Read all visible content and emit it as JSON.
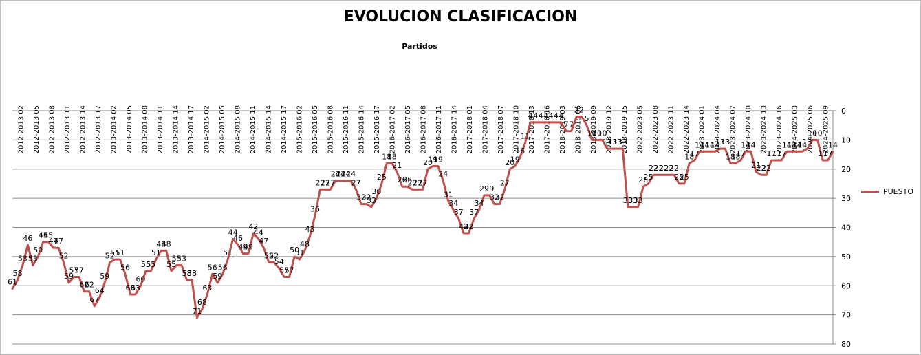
{
  "chart_data": {
    "type": "line",
    "title": "EVOLUCION CLASIFICACION",
    "xlabel": "Partidos",
    "ylabel": "",
    "ylim": [
      0,
      80
    ],
    "y_inverted": true,
    "y_ticks": [
      0,
      10,
      20,
      30,
      40,
      50,
      60,
      70,
      80
    ],
    "y_axis_side": "right",
    "grid": true,
    "legend_position": "right",
    "x_tick_labels": [
      "2012-2013 02",
      "2012-2013 05",
      "2012-2013 08",
      "2012-2013 11",
      "2012-2013 14",
      "2012-2013 17",
      "2013-2014 02",
      "2013-2014 05",
      "2013-2014 08",
      "2013-2014 11",
      "2013-2014 14",
      "2013-2014 17",
      "2014-2015 02",
      "2014-2015 05",
      "2014-2015 08",
      "2014-2015 11",
      "2014-2015 14",
      "2014-2015 17",
      "2015-2016 02",
      "2015-2016 05",
      "2015-2016 08",
      "2015-2016 11",
      "2015-2016 14",
      "2015-2016 17",
      "2016-2017 02",
      "2016-2017 05",
      "2016-2017 08",
      "2016-2017 11",
      "2016-2017 14",
      "2017-2018 01",
      "2017-2018 04",
      "2017-2018 07",
      "2017-2018 10",
      "2017-2018 13",
      "2017-2018 16",
      "2018-2019 03",
      "2018-2019 06",
      "2018-2019 09",
      "2018-2019 12",
      "2018-2019 15",
      "2022-2023 05",
      "2022-2023 08",
      "2022-2023 11",
      "2022-2023 14",
      "2023-2024 01",
      "2023-2024 04",
      "2023-2024 07",
      "2023-2024 10",
      "2023-2024 13",
      "2023-2024 16",
      "2024-2025 03",
      "2024-2025 06",
      "2024-2025 09"
    ],
    "series": [
      {
        "name": "PUESTO",
        "color": "#c0504d",
        "values": [
          61,
          58,
          53,
          46,
          53,
          50,
          45,
          45,
          47,
          47,
          52,
          59,
          57,
          57,
          62,
          62,
          67,
          64,
          59,
          52,
          51,
          51,
          56,
          63,
          63,
          60,
          55,
          55,
          51,
          48,
          48,
          55,
          53,
          53,
          58,
          58,
          71,
          68,
          63,
          56,
          59,
          56,
          51,
          44,
          46,
          49,
          49,
          42,
          44,
          47,
          52,
          52,
          54,
          57,
          57,
          50,
          51,
          48,
          43,
          36,
          27,
          27,
          27,
          24,
          24,
          24,
          24,
          27,
          32,
          32,
          33,
          30,
          25,
          18,
          18,
          21,
          26,
          26,
          27,
          27,
          27,
          20,
          19,
          19,
          24,
          31,
          34,
          37,
          42,
          42,
          37,
          34,
          29,
          29,
          32,
          32,
          27,
          20,
          19,
          16,
          11,
          4,
          4,
          4,
          4,
          4,
          4,
          4,
          7,
          7,
          2,
          2,
          5,
          10,
          10,
          10,
          13,
          13,
          13,
          13,
          33,
          33,
          33,
          26,
          25,
          22,
          22,
          22,
          22,
          22,
          25,
          25,
          18,
          17,
          14,
          14,
          14,
          14,
          13,
          13,
          18,
          18,
          17,
          14,
          14,
          21,
          22,
          22,
          17,
          17,
          17,
          14,
          14,
          14,
          14,
          13,
          10,
          10,
          17,
          17,
          14
        ]
      }
    ]
  }
}
